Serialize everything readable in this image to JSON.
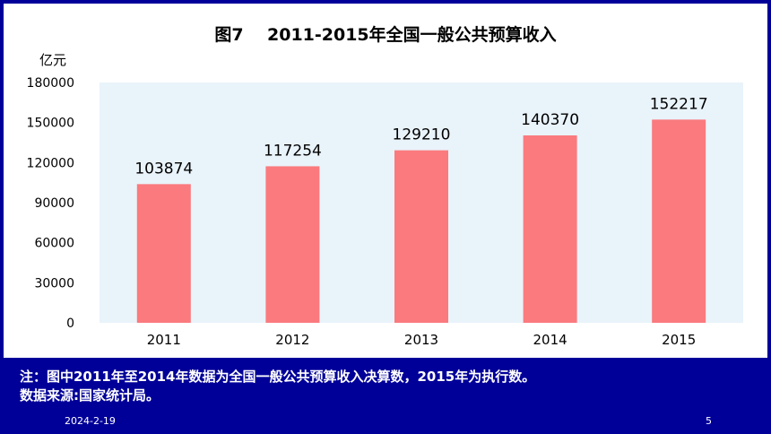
{
  "slide": {
    "footnote_line1": "注：图中2011年至2014年数据为全国一般公共预算收入决算数，2015年为执行数。",
    "footnote_line2": "数据来源:国家统计局。",
    "date": "2024-2-19",
    "page_number": "5"
  },
  "colors": {
    "background": "#000099",
    "plot_area": "#e9f3fa",
    "bar": "#fa7a7e"
  },
  "chart_data": {
    "type": "bar",
    "title": "图7    2011-2015年全国一般公共预算收入",
    "ylabel": "亿元",
    "xlabel": "",
    "categories": [
      "2011",
      "2012",
      "2013",
      "2014",
      "2015"
    ],
    "values": [
      103874,
      117254,
      129210,
      140370,
      152217
    ],
    "ylim": [
      0,
      180000
    ],
    "yticks": [
      0,
      30000,
      60000,
      90000,
      120000,
      150000,
      180000
    ],
    "grid": false,
    "legend": "none"
  }
}
